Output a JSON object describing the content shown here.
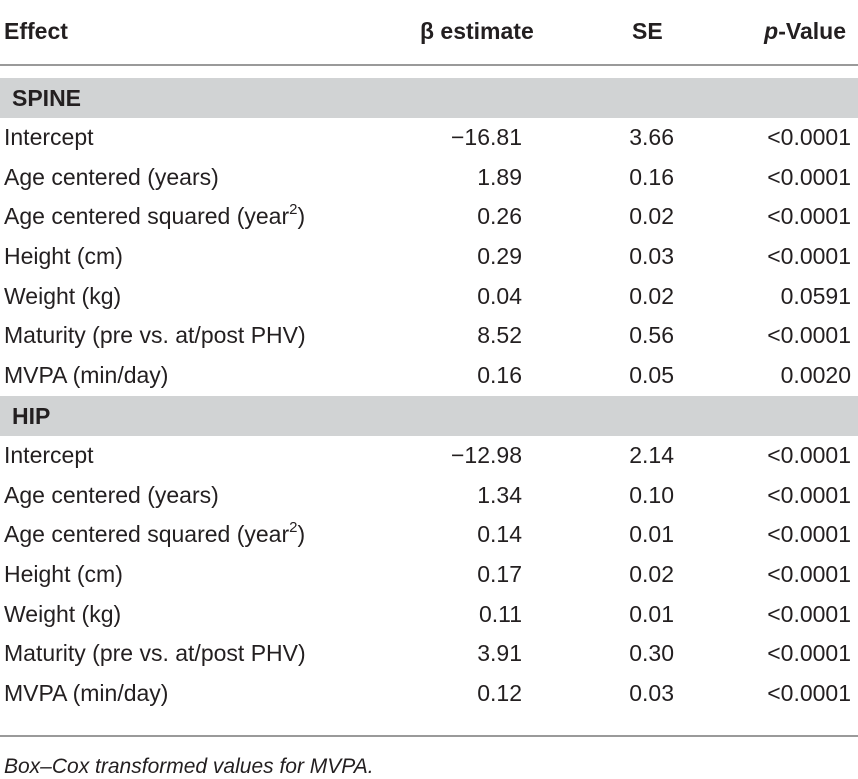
{
  "header": {
    "effect": "Effect",
    "beta": "β estimate",
    "se": "SE",
    "p_italic": "p",
    "p_rest": "-Value"
  },
  "sections": [
    {
      "label": "SPINE",
      "rows": [
        {
          "effect": "Intercept",
          "beta": "−16.81",
          "se": "3.66",
          "p": "<0.0001"
        },
        {
          "effect": "Age centered (years)",
          "beta": "1.89",
          "se": "0.16",
          "p": "<0.0001"
        },
        {
          "effect": "Age centered squared (year",
          "sup": "2",
          "effect_tail": ")",
          "beta": "0.26",
          "se": "0.02",
          "p": "<0.0001"
        },
        {
          "effect": "Height (cm)",
          "beta": "0.29",
          "se": "0.03",
          "p": "<0.0001"
        },
        {
          "effect": "Weight (kg)",
          "beta": "0.04",
          "se": "0.02",
          "p": "0.0591"
        },
        {
          "effect": "Maturity (pre vs. at/post PHV)",
          "beta": "8.52",
          "se": "0.56",
          "p": "<0.0001"
        },
        {
          "effect": "MVPA (min/day)",
          "beta": "0.16",
          "se": "0.05",
          "p": "0.0020"
        }
      ]
    },
    {
      "label": "HIP",
      "rows": [
        {
          "effect": "Intercept",
          "beta": "−12.98",
          "se": "2.14",
          "p": "<0.0001"
        },
        {
          "effect": "Age centered (years)",
          "beta": "1.34",
          "se": "0.10",
          "p": "<0.0001"
        },
        {
          "effect": "Age centered squared (year",
          "sup": "2",
          "effect_tail": ")",
          "beta": "0.14",
          "se": "0.01",
          "p": "<0.0001"
        },
        {
          "effect": "Height (cm)",
          "beta": "0.17",
          "se": "0.02",
          "p": "<0.0001"
        },
        {
          "effect": "Weight (kg)",
          "beta": "0.11",
          "se": "0.01",
          "p": "<0.0001"
        },
        {
          "effect": "Maturity (pre vs. at/post PHV)",
          "beta": "3.91",
          "se": "0.30",
          "p": "<0.0001"
        },
        {
          "effect": "MVPA (min/day)",
          "beta": "0.12",
          "se": "0.03",
          "p": "<0.0001"
        }
      ]
    }
  ],
  "footnote": "Box–Cox transformed values for MVPA."
}
